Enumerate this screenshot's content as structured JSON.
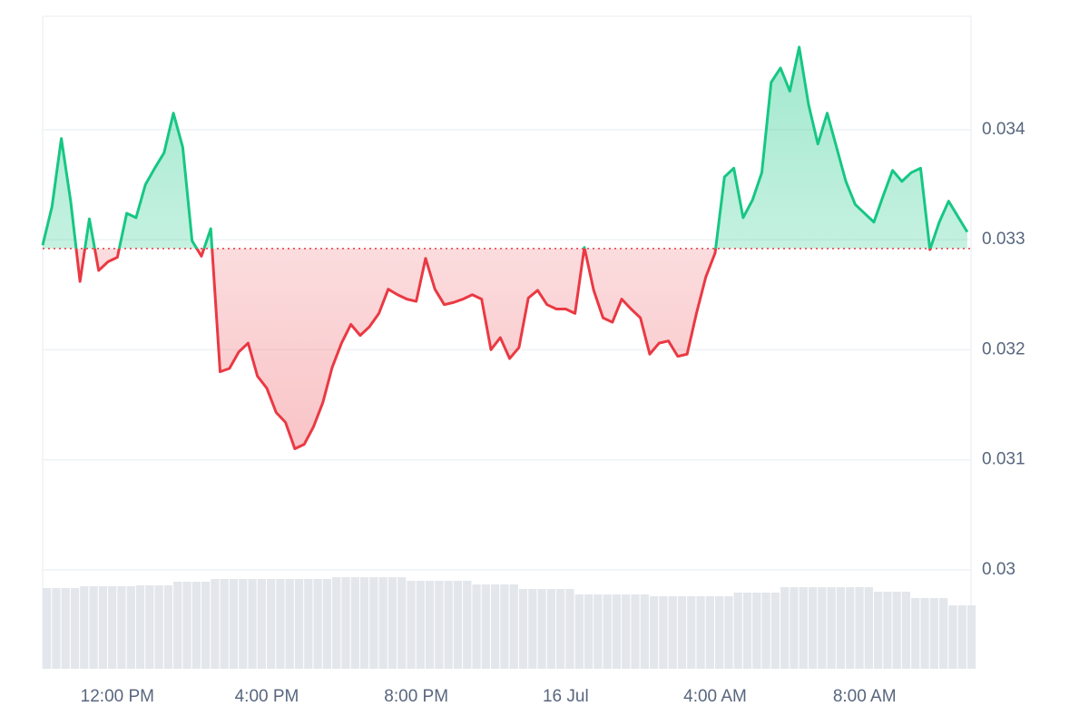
{
  "chart_data": {
    "type": "line",
    "x": [
      10,
      10.25,
      10.5,
      10.75,
      11,
      11.25,
      11.5,
      11.75,
      12,
      12.25,
      12.5,
      12.75,
      13,
      13.25,
      13.5,
      13.75,
      14,
      14.25,
      14.5,
      14.75,
      15,
      15.25,
      15.5,
      15.75,
      16,
      16.25,
      16.5,
      16.75,
      17,
      17.25,
      17.5,
      17.75,
      18,
      18.25,
      18.5,
      18.75,
      19,
      19.25,
      19.5,
      19.75,
      20,
      20.25,
      20.5,
      20.75,
      21,
      21.25,
      21.5,
      21.75,
      22,
      22.25,
      22.5,
      22.75,
      23,
      23.25,
      23.5,
      23.75,
      24,
      24.25,
      24.5,
      24.75,
      25,
      25.25,
      25.5,
      25.75,
      26,
      26.25,
      26.5,
      26.75,
      27,
      27.25,
      27.5,
      27.75,
      28,
      28.25,
      28.5,
      28.75,
      29,
      29.25,
      29.5,
      29.75,
      30,
      30.25,
      30.5,
      30.75,
      31,
      31.25,
      31.5,
      31.75,
      32,
      32.25,
      32.5,
      32.75,
      33,
      33.25,
      33.5,
      33.75,
      34,
      34.25,
      34.5,
      34.75
    ],
    "series": [
      {
        "values": [
          0.03295,
          0.0333,
          0.03392,
          0.03335,
          0.03262,
          0.03319,
          0.03272,
          0.0328,
          0.03284,
          0.03324,
          0.0332,
          0.0335,
          0.03365,
          0.03379,
          0.03415,
          0.03384,
          0.03299,
          0.03285,
          0.0331,
          0.0318,
          0.03183,
          0.03198,
          0.03206,
          0.03176,
          0.03165,
          0.03143,
          0.03134,
          0.0311,
          0.03114,
          0.0313,
          0.03152,
          0.03184,
          0.03206,
          0.03223,
          0.03213,
          0.03221,
          0.03233,
          0.03255,
          0.0325,
          0.03246,
          0.03244,
          0.03283,
          0.03255,
          0.03241,
          0.03243,
          0.03246,
          0.0325,
          0.03246,
          0.032,
          0.03211,
          0.03192,
          0.03202,
          0.03247,
          0.03254,
          0.03241,
          0.03237,
          0.03237,
          0.03233,
          0.03293,
          0.03254,
          0.03229,
          0.03225,
          0.03246,
          0.03237,
          0.03229,
          0.03196,
          0.03206,
          0.03208,
          0.03194,
          0.03196,
          0.03233,
          0.03266,
          0.03288,
          0.03357,
          0.03365,
          0.0332,
          0.03336,
          0.03361,
          0.03443,
          0.03456,
          0.03435,
          0.03475,
          0.03423,
          0.03387,
          0.03415,
          0.03384,
          0.03353,
          0.03332,
          0.03324,
          0.03316,
          0.0334,
          0.03363,
          0.03353,
          0.03361,
          0.03365,
          0.03291,
          0.03316,
          0.03335,
          0.03321,
          0.03307
        ]
      }
    ],
    "volume": [
      89,
      89,
      89,
      89,
      91,
      91,
      91,
      91,
      91,
      91,
      92,
      92,
      92,
      92,
      96,
      96,
      96,
      96,
      99,
      99,
      99,
      99,
      99,
      99,
      99,
      99,
      99,
      99,
      99,
      99,
      99,
      101,
      101,
      101,
      101,
      101,
      101,
      101,
      101,
      97,
      97,
      97,
      97,
      97,
      97,
      97,
      93,
      93,
      93,
      93,
      93,
      88,
      88,
      88,
      88,
      88,
      88,
      82,
      82,
      82,
      82,
      82,
      82,
      82,
      82,
      80,
      80,
      80,
      80,
      80,
      80,
      80,
      80,
      80,
      84,
      84,
      84,
      84,
      84,
      90,
      90,
      90,
      90,
      90,
      90,
      90,
      90,
      90,
      90,
      85,
      85,
      85,
      85,
      78,
      78,
      78,
      78,
      70,
      70,
      70
    ],
    "baseline": 0.03292,
    "up_color": "#16c784",
    "down_color": "#ea3943",
    "volume_color": "#e3e7ec",
    "xlim": [
      10,
      34.85
    ],
    "ylim": [
      0.0291,
      0.03503
    ],
    "xticks": [
      {
        "value": 12,
        "label": "12:00 PM"
      },
      {
        "value": 16,
        "label": "4:00 PM"
      },
      {
        "value": 20,
        "label": "8:00 PM"
      },
      {
        "value": 24,
        "label": "16 Jul"
      },
      {
        "value": 28,
        "label": "4:00 AM"
      },
      {
        "value": 32,
        "label": "8:00 AM"
      }
    ],
    "yticks": [
      0.03,
      0.031,
      0.032,
      0.033,
      0.034
    ],
    "grid": true
  }
}
